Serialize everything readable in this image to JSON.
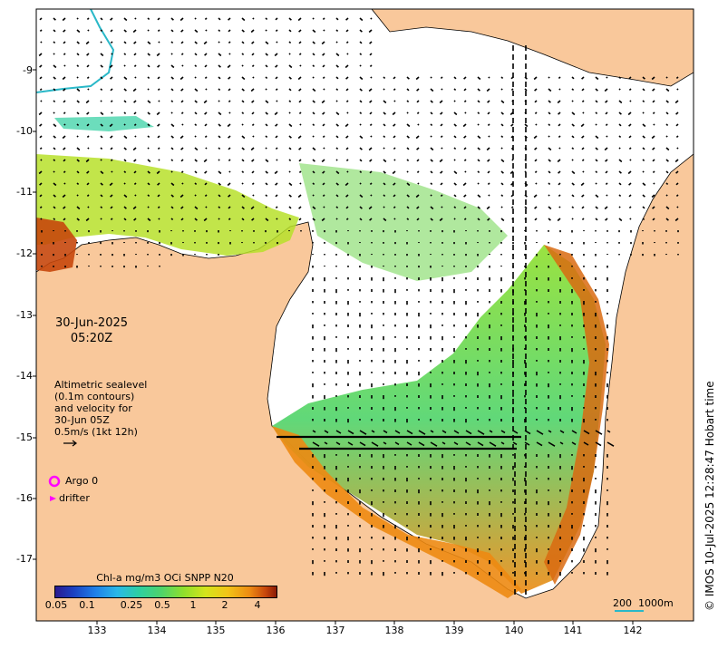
{
  "map": {
    "date": "30-Jun-2025",
    "time": "05:20Z",
    "altimetry_lines": [
      "Altimetric sealevel",
      "(0.1m contours)",
      "and velocity for",
      "30-Jun 05Z",
      "0.5m/s (1kt 12h)"
    ],
    "lat_ticks": [
      "-9",
      "-10",
      "-11",
      "-12",
      "-13",
      "-14",
      "-15",
      "-16",
      "-17"
    ],
    "lon_ticks": [
      "133",
      "134",
      "135",
      "136",
      "137",
      "138",
      "139",
      "140",
      "141",
      "142"
    ],
    "legend": {
      "argo": "Argo 0",
      "drifter": "drifter"
    },
    "colorbar": {
      "title": "Chl-a mg/m3 OCi SNPP N20",
      "ticks": [
        "0.05",
        "0.1",
        "0.25",
        "0.5",
        "1",
        "2",
        "4"
      ]
    },
    "scale_label": "200  1000m",
    "credit": "© IMOS 10-Jul-2025 12:28:47 Hobart time",
    "colors": {
      "land": "#f9c89b",
      "ocean": "#ffffff",
      "argo": "#ff00ff",
      "coastline": "#000000",
      "contour": "#2ab8c8"
    }
  }
}
